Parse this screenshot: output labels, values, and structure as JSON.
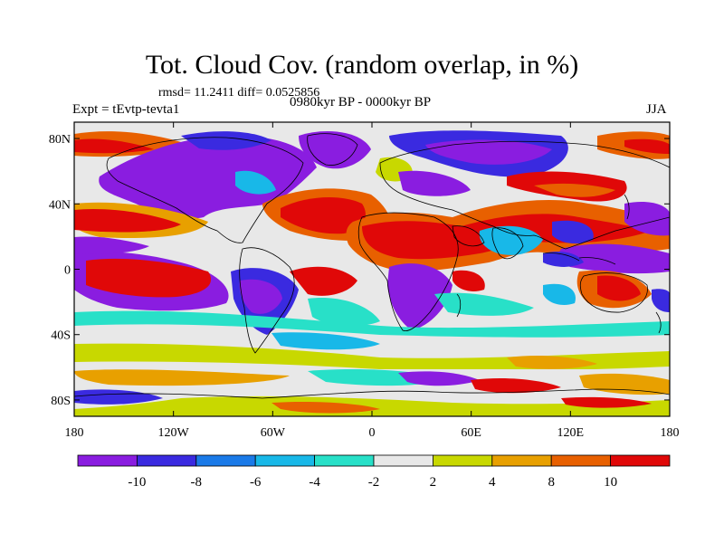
{
  "header": {
    "title": "Tot. Cloud Cov. (random overlap, in %)",
    "stats": "rmsd= 11.2411 diff= 0.0525856",
    "experiment": "Expt = tEvtp-tevta1",
    "period": "0980kyr BP - 0000kyr BP",
    "season": "JJA"
  },
  "map": {
    "lat_ticks": [
      "80N",
      "40N",
      "0",
      "40S",
      "80S"
    ],
    "lon_ticks": [
      "180",
      "120W",
      "60W",
      "0",
      "60E",
      "120E",
      "180"
    ]
  },
  "colorbar": {
    "labels": [
      "-10",
      "-8",
      "-6",
      "-4",
      "-2",
      "2",
      "4",
      "8",
      "10"
    ],
    "colors": [
      "#8a1de0",
      "#3a2ae0",
      "#1a7ae8",
      "#18b8e8",
      "#28e0c8",
      "#e8e8e8",
      "#c8d800",
      "#e8a000",
      "#e86000",
      "#e00808"
    ]
  },
  "chart_data": {
    "type": "heatmap",
    "title": "Tot. Cloud Cov. (random overlap, in %)",
    "levels": [
      -10,
      -8,
      -6,
      -4,
      -2,
      2,
      4,
      8,
      10
    ],
    "colors": [
      "#8a1de0",
      "#3a2ae0",
      "#1a7ae8",
      "#18b8e8",
      "#28e0c8",
      "#e8e8e8",
      "#c8d800",
      "#e8a000",
      "#e86000",
      "#e00808"
    ],
    "xlim": [
      -180,
      180
    ],
    "ylim": [
      -90,
      90
    ]
  }
}
